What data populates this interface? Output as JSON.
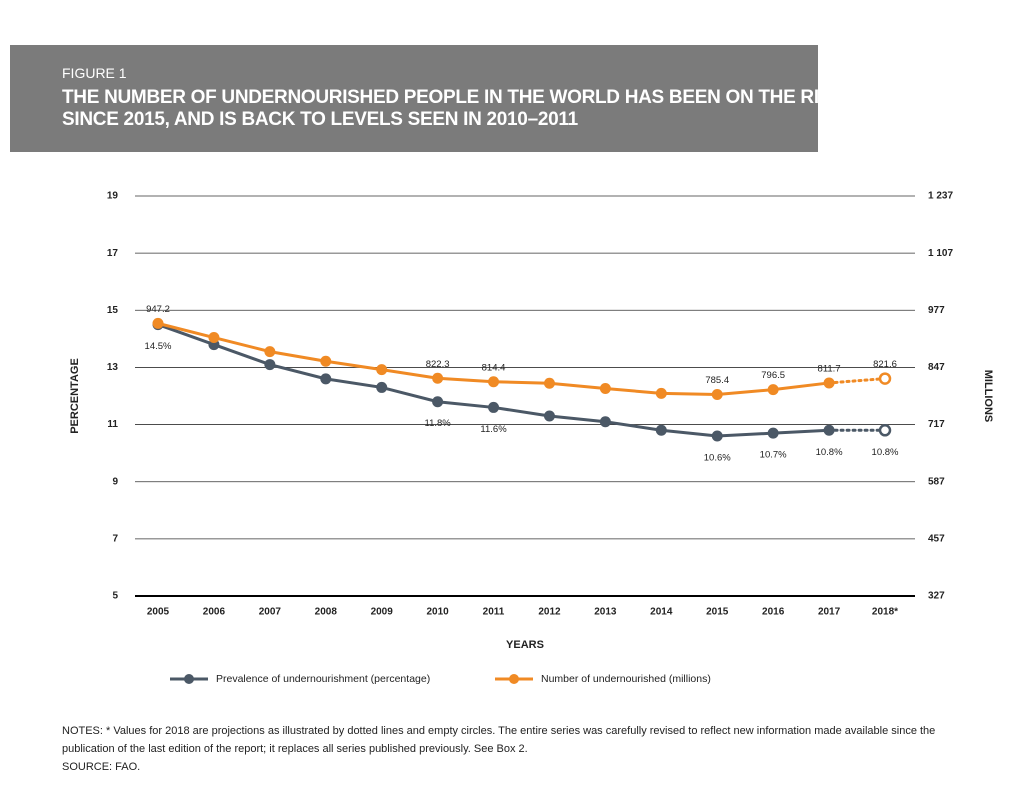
{
  "figure_label": "FIGURE 1",
  "chart_data": {
    "type": "line",
    "title_lines": [
      "THE NUMBER OF UNDERNOURISHED PEOPLE IN THE WORLD HAS BEEN ON THE RISE",
      "SINCE 2015, AND IS BACK TO LEVELS SEEN IN 2010–2011"
    ],
    "x_label": "YEARS",
    "y_label": "PERCENTAGE",
    "y2_label": "MILLIONS",
    "categories": [
      "2005",
      "2006",
      "2007",
      "2008",
      "2009",
      "2010",
      "2011",
      "2012",
      "2013",
      "2014",
      "2015",
      "2016",
      "2017",
      "2018*"
    ],
    "projection_index": 13,
    "ylim": [
      5,
      19
    ],
    "yticks": [
      5,
      7,
      9,
      11,
      13,
      15,
      17,
      19
    ],
    "y2lim": [
      327,
      1237
    ],
    "y2ticks": [
      327,
      457,
      587,
      717,
      847,
      977,
      {
        "value": 1107,
        "label": "1 107"
      },
      {
        "value": 1237,
        "label": "1 237"
      }
    ],
    "grid": true,
    "series": [
      {
        "name": "Prevalence of undernourishment (percentage)",
        "color": "#4b5866",
        "values": [
          14.5,
          13.8,
          13.1,
          12.6,
          12.3,
          11.8,
          11.6,
          11.3,
          11.1,
          10.8,
          10.6,
          10.7,
          10.8,
          10.8
        ],
        "value_labels": [
          "14.5%",
          null,
          null,
          null,
          null,
          "11.8%",
          "11.6%",
          null,
          null,
          null,
          "10.6%",
          "10.7%",
          "10.8%",
          "10.8%"
        ]
      },
      {
        "name": "Number of undernourished (millions)",
        "color": "#f08a24",
        "axis": "y2",
        "values": [
          947.2,
          915,
          883,
          861,
          842,
          822.3,
          814.4,
          811,
          799,
          788,
          785.4,
          796.5,
          811.7,
          821.6
        ],
        "value_labels": [
          "947.2",
          null,
          null,
          null,
          null,
          "822.3",
          "814.4",
          null,
          null,
          null,
          "785.4",
          "796.5",
          "811.7",
          "821.6"
        ]
      }
    ]
  },
  "notes": "NOTES: * Values for 2018 are projections as illustrated by dotted lines and empty circles. The entire series was carefully revised to reflect new information made available since the publication of the last edition of the report; it replaces all series published previously. See Box 2.",
  "source": "SOURCE: FAO."
}
